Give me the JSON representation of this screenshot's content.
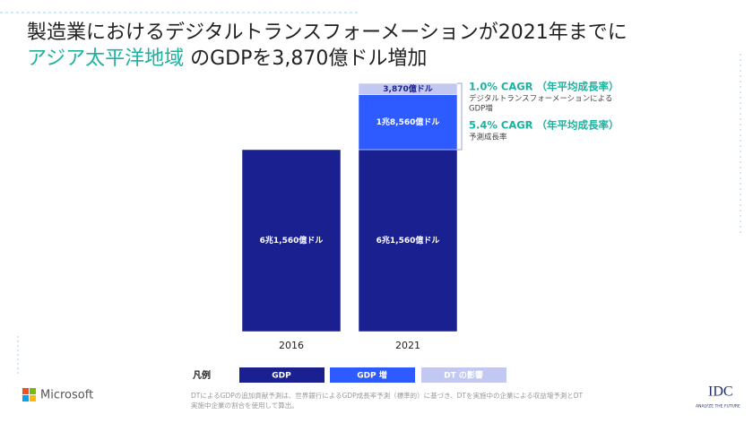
{
  "chart_data": {
    "type": "bar",
    "stacked": true,
    "title": [
      "製造業におけるデジタルトランスフォーメーションが2021年までに",
      "アジア太平洋地域",
      " のGDPを3,870億ドル増加"
    ],
    "categories": [
      "2016",
      "2021"
    ],
    "series": [
      {
        "name": "GDP",
        "color": "#1b2090",
        "values": [
          61560,
          61560
        ],
        "value_labels": [
          "6兆1,560億ドル",
          "6兆1,560億ドル"
        ]
      },
      {
        "name": "GDP 増",
        "color": "#2e5bff",
        "values": [
          null,
          18560
        ],
        "value_labels": [
          null,
          "1兆8,560億ドル"
        ]
      },
      {
        "name": "DT の影響",
        "color": "#c3c8f2",
        "values": [
          null,
          3870
        ],
        "value_labels": [
          null,
          "3,870億ドル"
        ]
      }
    ],
    "annotations": [
      {
        "heading": "1.0% CAGR （年平均成長率）",
        "lines": [
          "デジタルトランスフォーメーションによる",
          "GDP増"
        ]
      },
      {
        "heading": "5.4% CAGR （年平均成長率）",
        "lines": [
          "予測成長率"
        ]
      }
    ],
    "legend_title": "凡例",
    "footnote": [
      "DTによるGDPの追加貢献予測は、世界銀行によるGDP成長率予測（標準的）に基づき、DTを実施中の企業による収益増予測とDT",
      "実施中企業の割合を使用して算出。"
    ],
    "logos": [
      "Microsoft",
      "IDC",
      "ANALYZE THE FUTURE"
    ]
  }
}
